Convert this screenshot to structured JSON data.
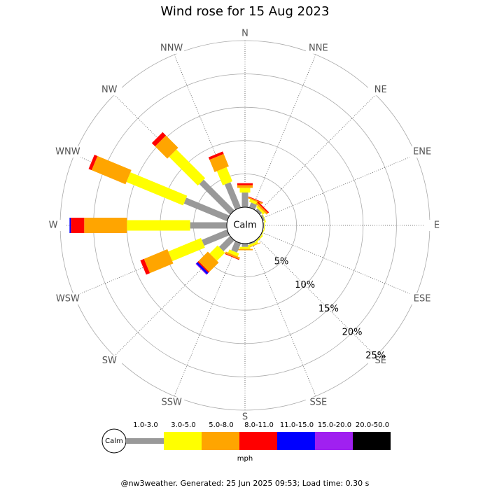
{
  "chart_data": {
    "type": "windrose",
    "title": "Wind rose for 15 Aug 2023",
    "categories": [
      "N",
      "NNE",
      "NE",
      "ENE",
      "E",
      "ESE",
      "SE",
      "SSE",
      "S",
      "SSW",
      "SW",
      "WSW",
      "W",
      "WNW",
      "NW",
      "NNW"
    ],
    "series": [
      {
        "name": "1.0-3.0",
        "color": "#999999",
        "values": [
          2.2,
          0.8,
          0.4,
          0.3,
          0.1,
          0.1,
          0.1,
          0.2,
          0.5,
          1.5,
          2.3,
          4.1,
          5.5,
          7.0,
          6.5,
          4.1
        ]
      },
      {
        "name": "3.0-5.0",
        "color": "#ffff00",
        "values": [
          0.7,
          0.4,
          0.3,
          0.1,
          0.1,
          0.1,
          0.2,
          0.3,
          0.3,
          0.5,
          1.7,
          5.3,
          9.5,
          9.2,
          6.1,
          2.3
        ]
      },
      {
        "name": "5.0-8.0",
        "color": "#ffa500",
        "values": [
          0.4,
          0.2,
          0.3,
          0.0,
          0.0,
          0.0,
          0.0,
          0.1,
          0.2,
          0.3,
          2.0,
          3.8,
          6.4,
          5.5,
          2.6,
          2.0
        ]
      },
      {
        "name": "8.0-11.0",
        "color": "#ff0000",
        "values": [
          0.3,
          0.1,
          0.2,
          0.0,
          0.0,
          0.0,
          0.0,
          0.0,
          0.0,
          0.1,
          0.2,
          0.6,
          2.0,
          0.5,
          0.7,
          0.4
        ]
      },
      {
        "name": "11.0-15.0",
        "color": "#0000ff",
        "values": [
          0,
          0,
          0,
          0,
          0,
          0,
          0,
          0,
          0,
          0,
          0.3,
          0,
          0.2,
          0,
          0,
          0
        ]
      },
      {
        "name": "15.0-20.0",
        "color": "#a020f0",
        "values": [
          0,
          0,
          0,
          0,
          0,
          0,
          0,
          0,
          0,
          0,
          0.1,
          0,
          0,
          0,
          0,
          0
        ]
      },
      {
        "name": "20.0-50.0",
        "color": "#000000",
        "values": [
          0,
          0,
          0,
          0,
          0,
          0,
          0,
          0,
          0,
          0,
          0,
          0,
          0,
          0,
          0,
          0
        ]
      }
    ],
    "rlim": [
      0,
      25
    ],
    "rticks": [
      {
        "value": 5,
        "label": "5%"
      },
      {
        "value": 10,
        "label": "10%"
      },
      {
        "value": 15,
        "label": "15%"
      },
      {
        "value": 20,
        "label": "20%"
      },
      {
        "value": 25,
        "label": "25%"
      }
    ],
    "center_label": "Calm",
    "legend_unit": "mph",
    "footer": "@nw3weather. Generated: 25 Jun 2025 09:53; Load time: 0.30 s"
  }
}
